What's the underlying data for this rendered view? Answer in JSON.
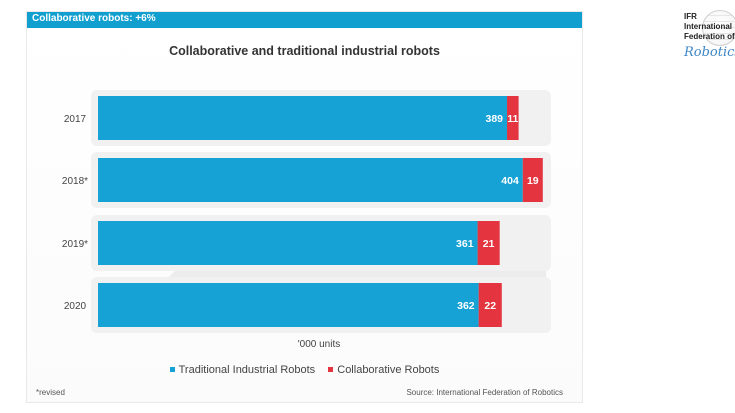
{
  "header": {
    "banner_text": "Collaborative robots: +6%"
  },
  "logo": {
    "line1": "IFR",
    "line2": "International",
    "line3": "Federation of",
    "line4": "Robotics"
  },
  "footer": {
    "footnote": "*revised",
    "source": "Source: International Federation of Robotics"
  },
  "colors": {
    "header": "#119fcf",
    "traditional": "#17a2d6",
    "collaborative": "#e3343f"
  },
  "chart_data": {
    "type": "bar",
    "orientation": "horizontal",
    "stacked": true,
    "title": "Collaborative and traditional industrial robots",
    "xlabel": "'000 units",
    "ylabel": "",
    "categories": [
      "2017",
      "2018*",
      "2019*",
      "2020"
    ],
    "series": [
      {
        "name": "Traditional Industrial Robots",
        "values": [
          389,
          404,
          361,
          362
        ],
        "color": "#17a2d6"
      },
      {
        "name": "Collaborative Robots",
        "values": [
          11,
          19,
          21,
          22
        ],
        "color": "#e3343f"
      }
    ],
    "xlim": [
      0,
      420
    ],
    "grid": false,
    "legend_position": "bottom"
  }
}
